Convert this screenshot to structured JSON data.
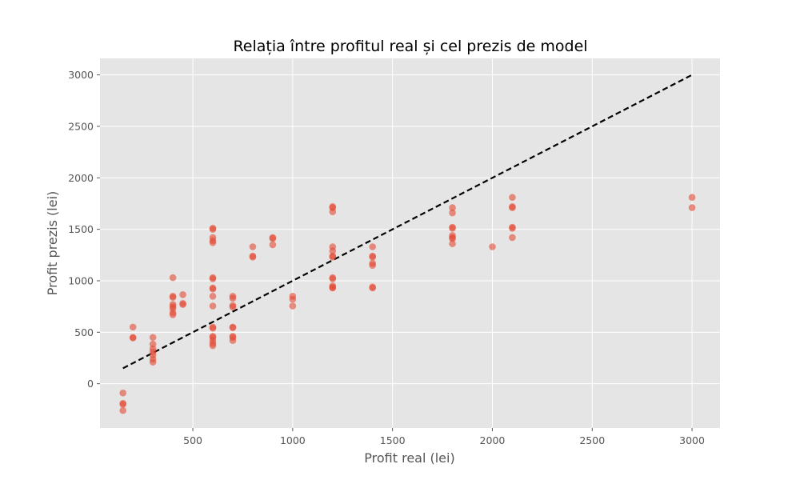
{
  "chart_data": {
    "type": "scatter",
    "title": "Relația între profitul real și cel prezis de model",
    "xlabel": "Profit real (lei)",
    "ylabel": "Profit prezis (lei)",
    "xlim": [
      35,
      3140
    ],
    "ylim": [
      -430,
      3160
    ],
    "xticks": [
      500,
      1000,
      1500,
      2000,
      2500,
      3000
    ],
    "yticks": [
      0,
      500,
      1000,
      1500,
      2000,
      2500,
      3000
    ],
    "grid": true,
    "legend": "none",
    "colors": {
      "background": "#e5e5e5",
      "grid": "#ffffff",
      "points": "#e24a33",
      "reference_line": "#000000",
      "tick_text": "#555555"
    },
    "reference_line": {
      "x": [
        150,
        3000
      ],
      "y": [
        150,
        3000
      ],
      "style": "dashed"
    },
    "points": [
      {
        "x": 150,
        "y": -90
      },
      {
        "x": 150,
        "y": -190
      },
      {
        "x": 150,
        "y": -200
      },
      {
        "x": 150,
        "y": -260
      },
      {
        "x": 200,
        "y": 550
      },
      {
        "x": 200,
        "y": 450
      },
      {
        "x": 200,
        "y": 445
      },
      {
        "x": 300,
        "y": 450
      },
      {
        "x": 300,
        "y": 385
      },
      {
        "x": 300,
        "y": 340
      },
      {
        "x": 300,
        "y": 310
      },
      {
        "x": 300,
        "y": 280
      },
      {
        "x": 300,
        "y": 240
      },
      {
        "x": 300,
        "y": 210
      },
      {
        "x": 400,
        "y": 1030
      },
      {
        "x": 400,
        "y": 850
      },
      {
        "x": 400,
        "y": 840
      },
      {
        "x": 400,
        "y": 770
      },
      {
        "x": 400,
        "y": 750
      },
      {
        "x": 400,
        "y": 730
      },
      {
        "x": 400,
        "y": 690
      },
      {
        "x": 400,
        "y": 670
      },
      {
        "x": 450,
        "y": 865
      },
      {
        "x": 450,
        "y": 780
      },
      {
        "x": 450,
        "y": 770
      },
      {
        "x": 600,
        "y": 1510
      },
      {
        "x": 600,
        "y": 1500
      },
      {
        "x": 600,
        "y": 1420
      },
      {
        "x": 600,
        "y": 1390
      },
      {
        "x": 600,
        "y": 1370
      },
      {
        "x": 600,
        "y": 1030
      },
      {
        "x": 600,
        "y": 1020
      },
      {
        "x": 600,
        "y": 930
      },
      {
        "x": 600,
        "y": 920
      },
      {
        "x": 600,
        "y": 850
      },
      {
        "x": 600,
        "y": 755
      },
      {
        "x": 600,
        "y": 550
      },
      {
        "x": 600,
        "y": 540
      },
      {
        "x": 600,
        "y": 460
      },
      {
        "x": 600,
        "y": 450
      },
      {
        "x": 600,
        "y": 420
      },
      {
        "x": 600,
        "y": 390
      },
      {
        "x": 600,
        "y": 370
      },
      {
        "x": 700,
        "y": 850
      },
      {
        "x": 700,
        "y": 830
      },
      {
        "x": 700,
        "y": 760
      },
      {
        "x": 700,
        "y": 745
      },
      {
        "x": 700,
        "y": 550
      },
      {
        "x": 700,
        "y": 545
      },
      {
        "x": 700,
        "y": 460
      },
      {
        "x": 700,
        "y": 450
      },
      {
        "x": 700,
        "y": 420
      },
      {
        "x": 800,
        "y": 1330
      },
      {
        "x": 800,
        "y": 1240
      },
      {
        "x": 800,
        "y": 1230
      },
      {
        "x": 900,
        "y": 1420
      },
      {
        "x": 900,
        "y": 1410
      },
      {
        "x": 900,
        "y": 1350
      },
      {
        "x": 1000,
        "y": 850
      },
      {
        "x": 1000,
        "y": 820
      },
      {
        "x": 1000,
        "y": 755
      },
      {
        "x": 1200,
        "y": 1720
      },
      {
        "x": 1200,
        "y": 1710
      },
      {
        "x": 1200,
        "y": 1670
      },
      {
        "x": 1200,
        "y": 1330
      },
      {
        "x": 1200,
        "y": 1290
      },
      {
        "x": 1200,
        "y": 1240
      },
      {
        "x": 1200,
        "y": 1230
      },
      {
        "x": 1200,
        "y": 1030
      },
      {
        "x": 1200,
        "y": 1020
      },
      {
        "x": 1200,
        "y": 950
      },
      {
        "x": 1200,
        "y": 935
      },
      {
        "x": 1200,
        "y": 930
      },
      {
        "x": 1400,
        "y": 1330
      },
      {
        "x": 1400,
        "y": 1240
      },
      {
        "x": 1400,
        "y": 1230
      },
      {
        "x": 1400,
        "y": 1170
      },
      {
        "x": 1400,
        "y": 1150
      },
      {
        "x": 1400,
        "y": 940
      },
      {
        "x": 1400,
        "y": 930
      },
      {
        "x": 1800,
        "y": 1710
      },
      {
        "x": 1800,
        "y": 1660
      },
      {
        "x": 1800,
        "y": 1520
      },
      {
        "x": 1800,
        "y": 1510
      },
      {
        "x": 1800,
        "y": 1440
      },
      {
        "x": 1800,
        "y": 1420
      },
      {
        "x": 1800,
        "y": 1410
      },
      {
        "x": 1800,
        "y": 1360
      },
      {
        "x": 2000,
        "y": 1330
      },
      {
        "x": 2100,
        "y": 1810
      },
      {
        "x": 2100,
        "y": 1720
      },
      {
        "x": 2100,
        "y": 1710
      },
      {
        "x": 2100,
        "y": 1520
      },
      {
        "x": 2100,
        "y": 1510
      },
      {
        "x": 2100,
        "y": 1420
      },
      {
        "x": 3000,
        "y": 1810
      },
      {
        "x": 3000,
        "y": 1710
      }
    ]
  }
}
